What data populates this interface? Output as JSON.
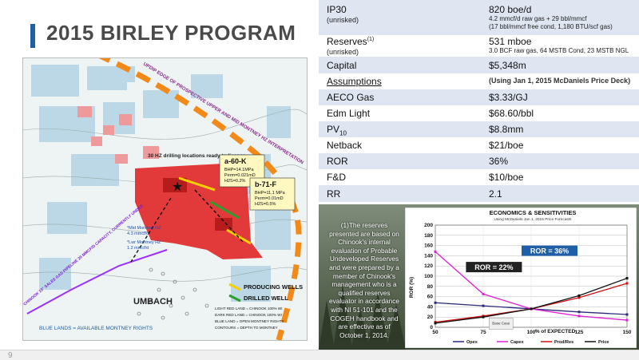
{
  "title": "2015 BIRLEY PROGRAM",
  "page_number": "9",
  "map": {
    "trend_label": "UPDIP EDGE OF PROSPECTIVE UPPER AND MID MONTNEY HZ INTERPRETATION",
    "drilling_label": "30 HZ drilling locations ready to license",
    "well_a": {
      "name": "a-60-K",
      "l1": "BHP=14.1MPa",
      "l2": "Perm=0.021mD",
      "l3": "H2S=0.2%"
    },
    "well_b": {
      "name": "b-71-F",
      "l1": "BHP=11.1 MPa",
      "l2": "Perm=0.01mD",
      "l3": "H2S=0.5%"
    },
    "mid_montney": "*Mid Montney HZ",
    "mid_montney_rate": "4.3 mmcf/d",
    "lwr_montney": "*Lwr Montney HZ",
    "lwr_montney_rate": "1.2 mmcf/d",
    "pipeline_label": "CHINOOK 10\" SALES GAS PIPELINE 20 MMCF/D CAPACITY, CURRENTLY UNDER",
    "town": "UMBACH",
    "legend_producing": "PRODUCING WELLS",
    "legend_drilled": "DRILLED WELL",
    "legend_1": "LIGHT RED LAND = CHINOOK 100% WI",
    "legend_2": "DARK RED LAND = CHINOOK 100% WI",
    "legend_3": "BLUE LAND = OPEN MONTNEY RIGHTS",
    "legend_4": "CONTOURS = DEPTH TO MONTNEY",
    "blue_lands": "BLUE LANDS = AVAILABLE MONTNEY RIGHTS"
  },
  "table": {
    "ip30_label": "IP30",
    "ip30_sub": "(unrisked)",
    "ip30_value": "820 boe/d",
    "ip30_detail1": "4.2 mmcf/d raw gas + 29 bbl/mmcf",
    "ip30_detail2": "(17 bbl/mmcf free cond, 1,180 BTU/scf gas)",
    "reserves_label": "Reserves",
    "reserves_sup": "(1)",
    "reserves_sub": "(unrisked)",
    "reserves_value": "531 mboe",
    "reserves_detail": "3.0 BCF raw gas, 64 MSTB Cond, 23 MSTB NGL",
    "capital_label": "Capital",
    "capital_value": "$5,348m",
    "assumptions_label": "Assumptions",
    "assumptions_value": "(Using Jan 1, 2015 McDaniels Price Deck)",
    "aeco_label": "AECO Gas",
    "aeco_value": "$3.33/GJ",
    "edm_label": "Edm Light",
    "edm_value": "$68.60/bbl",
    "pv_label": "PV",
    "pv_sub": "10",
    "pv_value": "$8.8mm",
    "netback_label": "Netback",
    "netback_value": "$21/boe",
    "ror_label": "ROR",
    "ror_value": "36%",
    "fd_label": "F&D",
    "fd_value": "$10/boe",
    "rr_label": "RR",
    "rr_value": "2.1"
  },
  "note": "(1)The reserves presented are based on Chinook's internal evaluation of Probable Undeveloped Reserves and were prepared by a member of Chinook's management who is a qualified reserves evaluator in accordance with NI 51-101 and the COGEH handbook and are effective as of October 1, 2014.",
  "chart_data": {
    "type": "line",
    "title": "ECONOMICS & SENSITIVITIES",
    "subtitle": "Using McDaniels Jan 1, 2015 Price Forecasts",
    "xlabel": "% of EXPECTED",
    "ylabel": "ROR (%)",
    "x": [
      50,
      75,
      100,
      125,
      150
    ],
    "xlim": [
      50,
      150
    ],
    "ylim": [
      0,
      200
    ],
    "yticks": [
      0,
      20,
      40,
      60,
      80,
      100,
      120,
      140,
      160,
      180,
      200
    ],
    "series": [
      {
        "name": "Opex",
        "color": "#2b2b7a",
        "values": [
          48,
          42,
          36,
          30,
          25
        ]
      },
      {
        "name": "Capex",
        "color": "#e020d0",
        "values": [
          148,
          65,
          36,
          22,
          14
        ]
      },
      {
        "name": "Prod/Res",
        "color": "#d01010",
        "values": [
          10,
          22,
          36,
          58,
          86
        ]
      },
      {
        "name": "Price",
        "color": "#111111",
        "values": [
          8,
          20,
          36,
          62,
          96
        ]
      }
    ],
    "annotations": [
      {
        "text": "ROR = 36%",
        "bg": "#1f5fa8"
      },
      {
        "text": "ROR = 22%",
        "bg": "#222222"
      }
    ],
    "base_case_label": "Base Case"
  }
}
